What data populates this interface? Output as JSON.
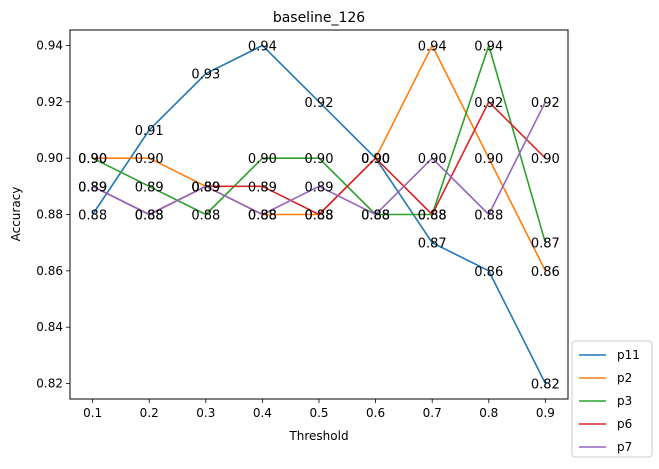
{
  "chart_data": {
    "type": "line",
    "title": "baseline_126",
    "xlabel": "Threshold",
    "ylabel": "Accuracy",
    "x": [
      0.1,
      0.2,
      0.3,
      0.4,
      0.5,
      0.6,
      0.7,
      0.8,
      0.9
    ],
    "x_tick_labels": [
      "0.1",
      "0.2",
      "0.3",
      "0.4",
      "0.5",
      "0.6",
      "0.7",
      "0.8",
      "0.9"
    ],
    "y_ticks": [
      0.82,
      0.84,
      0.86,
      0.88,
      0.9,
      0.92,
      0.94
    ],
    "y_tick_labels": [
      "0.82",
      "0.84",
      "0.86",
      "0.88",
      "0.90",
      "0.92",
      "0.94"
    ],
    "xlim": [
      0.06,
      0.94
    ],
    "ylim": [
      0.8145,
      0.9455
    ],
    "grid": false,
    "legend_position": "outside-lower-right",
    "series": [
      {
        "name": "p11",
        "color": "#1f77b4",
        "values": [
          0.88,
          0.91,
          0.93,
          0.94,
          0.92,
          0.9,
          0.87,
          0.86,
          0.82
        ],
        "labels": [
          "0.88",
          "0.91",
          "0.93",
          "0.94",
          "0.92",
          "0.90",
          "0.87",
          "0.86",
          "0.82"
        ]
      },
      {
        "name": "p2",
        "color": "#ff7f0e",
        "values": [
          0.9,
          0.9,
          0.89,
          0.88,
          0.88,
          0.9,
          0.94,
          0.9,
          0.86
        ],
        "labels": [
          "0.90",
          "0.90",
          "0.89",
          "0.88",
          "0.88",
          "0.90",
          "0.94",
          "0.90",
          "0.86"
        ]
      },
      {
        "name": "p3",
        "color": "#2ca02c",
        "values": [
          0.9,
          0.89,
          0.88,
          0.9,
          0.9,
          0.88,
          0.88,
          0.94,
          0.87
        ],
        "labels": [
          "0.90",
          "0.89",
          "0.88",
          "0.90",
          "0.90",
          "0.88",
          "0.88",
          "0.94",
          "0.87"
        ]
      },
      {
        "name": "p6",
        "color": "#d62728",
        "values": [
          0.89,
          0.88,
          0.89,
          0.89,
          0.88,
          0.9,
          0.88,
          0.92,
          0.9
        ],
        "labels": [
          "0.89",
          "0.88",
          "0.89",
          "0.89",
          "0.88",
          "0.90",
          "0.88",
          "0.92",
          "0.90"
        ]
      },
      {
        "name": "p7",
        "color": "#9467bd",
        "values": [
          0.89,
          0.88,
          0.89,
          0.88,
          0.89,
          0.88,
          0.9,
          0.88,
          0.92
        ],
        "labels": [
          "0.89",
          "0.88",
          "0.89",
          "0.88",
          "0.89",
          "0.88",
          "0.90",
          "0.88",
          "0.92"
        ]
      }
    ]
  }
}
